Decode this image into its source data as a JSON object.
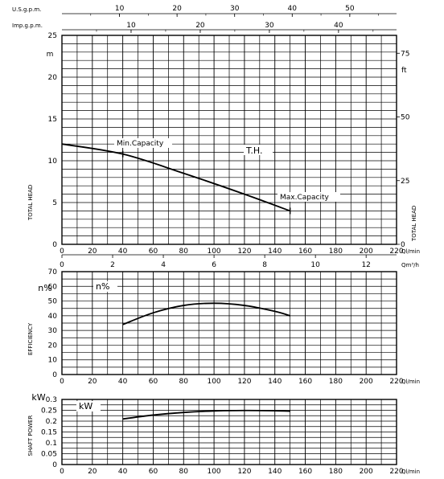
{
  "chart_data": [
    {
      "type": "line",
      "title": "",
      "series": [
        {
          "name": "T.H.",
          "x": [
            0,
            40,
            80,
            120,
            150
          ],
          "y": [
            12,
            10.8,
            8.5,
            6.0,
            4.0
          ]
        }
      ],
      "xlabel": "Ql/min",
      "x_ticks": [
        "0",
        "20",
        "40",
        "60",
        "80",
        "100",
        "120",
        "140",
        "160",
        "180",
        "200",
        "220"
      ],
      "xlim": [
        0,
        220
      ],
      "x2_label": "Qm³/h",
      "x2_ticks": [
        "0",
        "2",
        "4",
        "6",
        "8",
        "10",
        "12"
      ],
      "ylabel": "TOTAL HEAD",
      "y_unit": "m",
      "ylim": [
        0,
        25
      ],
      "y_ticks": [
        "0",
        "5",
        "10",
        "15",
        "20",
        "25"
      ],
      "y2_label": "TOTAL HEAD",
      "y2_unit": "ft",
      "y2_ticks": [
        "0",
        "25",
        "50",
        "75"
      ],
      "top_axis_usgpm_label": "U.S.g.p.m.",
      "top_axis_usgpm_ticks": [
        "10",
        "20",
        "30",
        "40",
        "50"
      ],
      "top_axis_imp_label": "Imp.g.p.m.",
      "top_axis_imp_ticks": [
        "10",
        "20",
        "30",
        "40"
      ],
      "annotations": [
        {
          "text": "Min.Capacity",
          "x": 40,
          "y": 10.8
        },
        {
          "text": "Max.Capacity",
          "x": 150,
          "y": 4.0
        },
        {
          "text": "T.H."
        }
      ],
      "grid": true
    },
    {
      "type": "line",
      "series": [
        {
          "name": "n%",
          "x": [
            40,
            60,
            80,
            100,
            120,
            140,
            150
          ],
          "y": [
            34,
            42,
            47,
            48.5,
            47,
            43,
            40
          ]
        }
      ],
      "xlabel": "Ql/min",
      "x_ticks": [
        "0",
        "20",
        "40",
        "60",
        "80",
        "100",
        "120",
        "140",
        "160",
        "180",
        "200",
        "220"
      ],
      "xlim": [
        0,
        220
      ],
      "ylabel": "EFFICIENCY",
      "y_unit": "n%",
      "ylim": [
        0,
        70
      ],
      "y_ticks": [
        "0",
        "10",
        "20",
        "30",
        "40",
        "50",
        "60",
        "70"
      ],
      "grid": true
    },
    {
      "type": "line",
      "series": [
        {
          "name": "kW",
          "x": [
            40,
            60,
            80,
            100,
            120,
            140,
            150
          ],
          "y": [
            0.21,
            0.228,
            0.24,
            0.247,
            0.249,
            0.248,
            0.246
          ]
        }
      ],
      "xlabel": "Ql/min",
      "x_ticks": [
        "0",
        "20",
        "40",
        "60",
        "80",
        "100",
        "120",
        "140",
        "160",
        "180",
        "200",
        "220"
      ],
      "xlim": [
        0,
        220
      ],
      "ylabel": "SHAFT POWER",
      "y_unit": "kW",
      "ylim": [
        0,
        0.3
      ],
      "y_ticks": [
        "0",
        "0.05",
        "0.1",
        "0.15",
        "0.2",
        "0.25",
        "0.3"
      ],
      "grid": true
    }
  ]
}
